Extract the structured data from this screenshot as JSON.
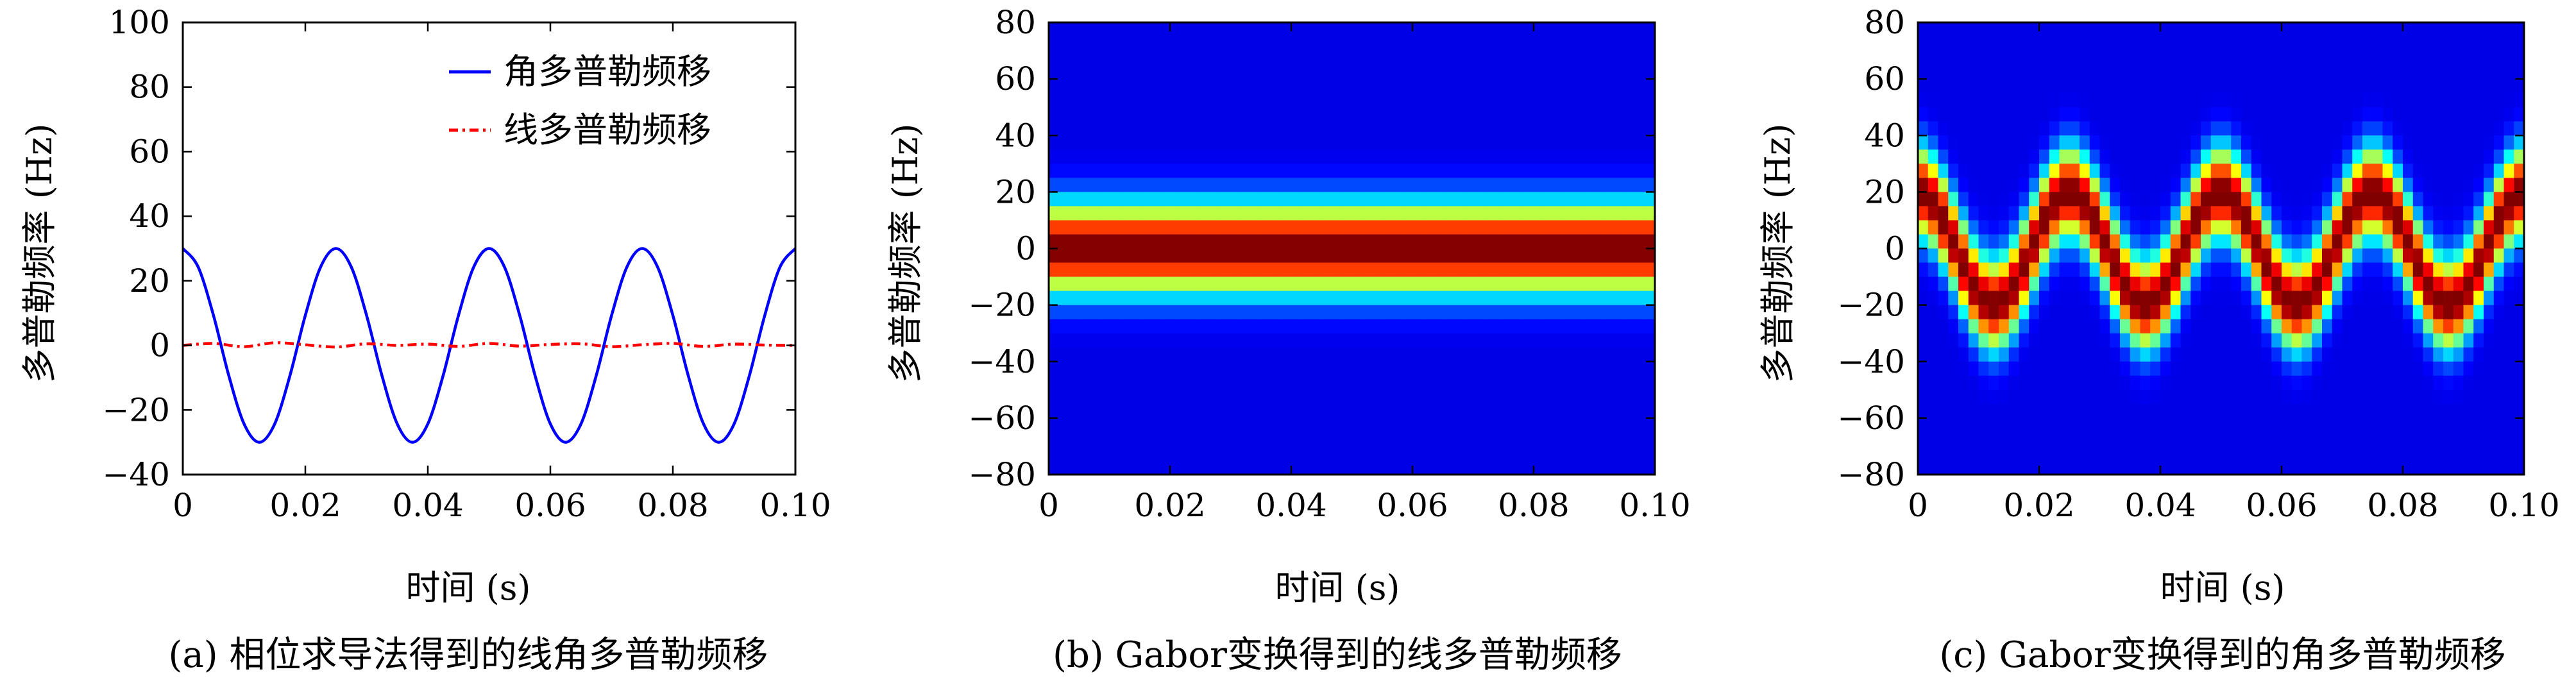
{
  "chart_data": [
    {
      "type": "line",
      "panel": "a",
      "caption": "(a) 相位求导法得到的线角多普勒频移",
      "xlabel": "时间 (s)",
      "ylabel": "多普勒频率 (Hz)",
      "xlim": [
        0,
        0.1
      ],
      "ylim": [
        -40,
        100
      ],
      "xticks": [
        0,
        0.02,
        0.04,
        0.06,
        0.08,
        0.1
      ],
      "xtick_labels": [
        "0",
        "0.02",
        "0.04",
        "0.06",
        "0.08",
        "0.10"
      ],
      "yticks": [
        -40,
        -20,
        0,
        20,
        40,
        60,
        80,
        100
      ],
      "ytick_labels": [
        "−40",
        "−20",
        "0",
        "20",
        "40",
        "60",
        "80",
        "100"
      ],
      "legend_position": "top-right",
      "grid": false,
      "series": [
        {
          "name": "角多普勒频移",
          "color": "#0000ff",
          "style": "solid",
          "x": [
            0,
            0.0025,
            0.005,
            0.0075,
            0.01,
            0.0125,
            0.015,
            0.0175,
            0.02,
            0.0225,
            0.025,
            0.0275,
            0.03,
            0.0325,
            0.035,
            0.0375,
            0.04,
            0.0425,
            0.045,
            0.0475,
            0.05,
            0.0525,
            0.055,
            0.0575,
            0.06,
            0.0625,
            0.065,
            0.0675,
            0.07,
            0.0725,
            0.075,
            0.0775,
            0.08,
            0.0825,
            0.085,
            0.0875,
            0.09,
            0.0925,
            0.095,
            0.0975,
            0.1
          ],
          "y": [
            30,
            24.3,
            9.3,
            -9.3,
            -24.3,
            -30,
            -24.3,
            -9.3,
            9.3,
            24.3,
            30,
            24.3,
            9.3,
            -9.3,
            -24.3,
            -30,
            -24.3,
            -9.3,
            9.3,
            24.3,
            30,
            24.3,
            9.3,
            -9.3,
            -24.3,
            -30,
            -24.3,
            -9.3,
            9.3,
            24.3,
            30,
            24.3,
            9.3,
            -9.3,
            -24.3,
            -30,
            -24.3,
            -9.3,
            9.3,
            24.3,
            30
          ]
        },
        {
          "name": "线多普勒频移",
          "color": "#ff0000",
          "style": "dash-dot",
          "x": [
            0,
            0.005,
            0.01,
            0.015,
            0.02,
            0.025,
            0.03,
            0.035,
            0.04,
            0.045,
            0.05,
            0.055,
            0.06,
            0.065,
            0.07,
            0.075,
            0.08,
            0.085,
            0.09,
            0.095,
            0.1
          ],
          "y": [
            0,
            0.6,
            -0.4,
            0.8,
            0.2,
            -0.5,
            0.5,
            0,
            0.4,
            -0.3,
            0.6,
            -0.2,
            0.3,
            0.5,
            -0.4,
            0.2,
            0.6,
            -0.3,
            0.4,
            0.1,
            0
          ]
        }
      ]
    },
    {
      "type": "heatmap",
      "panel": "b",
      "caption": "(b) Gabor变换得到的线多普勒频移",
      "xlabel": "时间 (s)",
      "ylabel": "多普勒频率 (Hz)",
      "xlim": [
        0,
        0.1
      ],
      "ylim": [
        -80,
        80
      ],
      "xticks": [
        0,
        0.02,
        0.04,
        0.06,
        0.08,
        0.1
      ],
      "xtick_labels": [
        "0",
        "0.02",
        "0.04",
        "0.06",
        "0.08",
        "0.10"
      ],
      "yticks": [
        -80,
        -60,
        -40,
        -20,
        0,
        20,
        40,
        60,
        80
      ],
      "ytick_labels": [
        "−80",
        "−60",
        "−40",
        "−20",
        "0",
        "20",
        "40",
        "60",
        "80"
      ],
      "colormap": "jet",
      "ridge": {
        "center_freq": 0,
        "amplitude": 0,
        "period": 0.025,
        "width_hz": 15
      }
    },
    {
      "type": "heatmap",
      "panel": "c",
      "caption": "(c) Gabor变换得到的角多普勒频移",
      "xlabel": "时间 (s)",
      "ylabel": "多普勒频率 (Hz)",
      "xlim": [
        0,
        0.1
      ],
      "ylim": [
        -80,
        80
      ],
      "xticks": [
        0,
        0.02,
        0.04,
        0.06,
        0.08,
        0.1
      ],
      "xtick_labels": [
        "0",
        "0.02",
        "0.04",
        "0.06",
        "0.08",
        "0.10"
      ],
      "yticks": [
        -80,
        -60,
        -40,
        -20,
        0,
        20,
        40,
        60,
        80
      ],
      "ytick_labels": [
        "−80",
        "−60",
        "−40",
        "−20",
        "0",
        "20",
        "40",
        "60",
        "80"
      ],
      "colormap": "jet",
      "ridge": {
        "center_freq": 0,
        "amplitude": 20,
        "period": 0.025,
        "width_hz": 15
      }
    }
  ]
}
